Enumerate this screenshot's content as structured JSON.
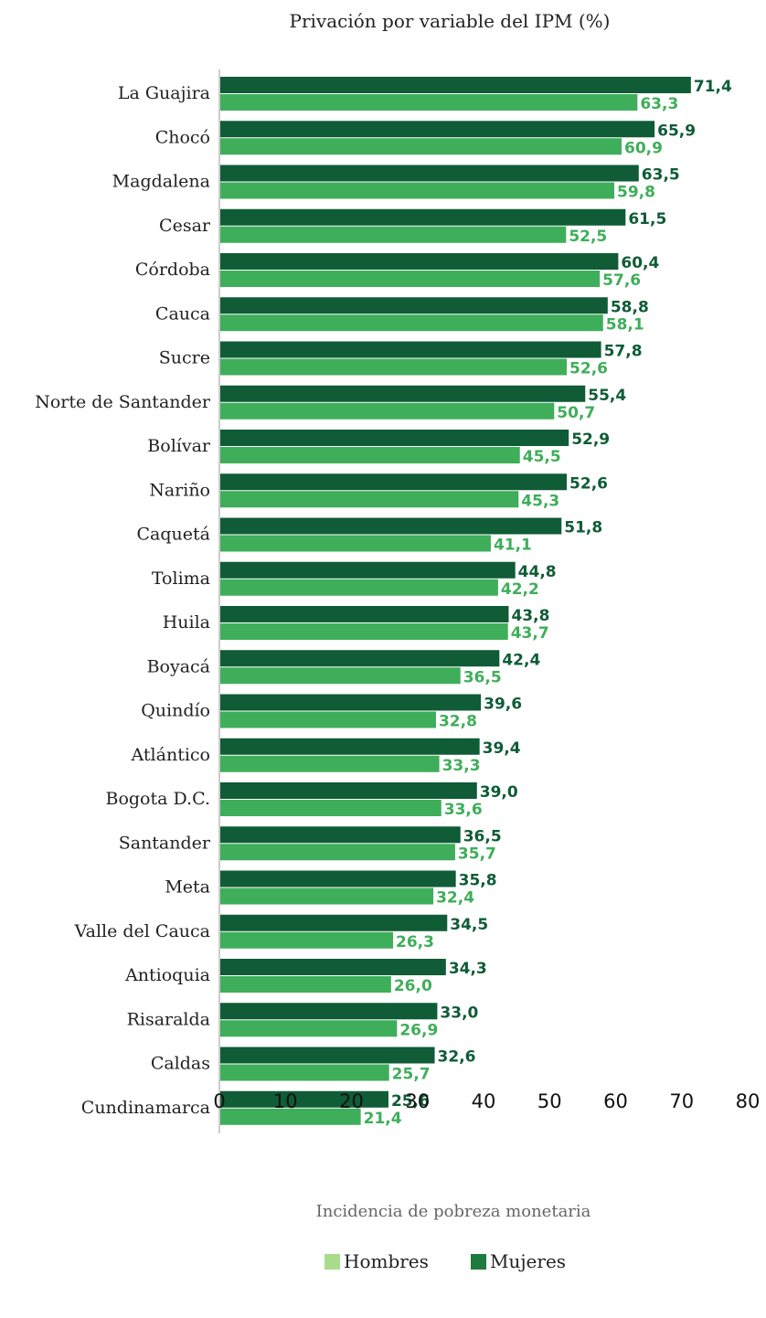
{
  "chart_data": {
    "type": "bar",
    "orientation": "horizontal",
    "title": "Privación por variable del IPM (%)",
    "xlabel": "Incidencia de pobreza monetaria",
    "ylabel": "",
    "xlim": [
      0,
      80
    ],
    "ticks": [
      "0",
      "10",
      "20",
      "30",
      "40",
      "50",
      "60",
      "70",
      "80"
    ],
    "tick_values": [
      0,
      10,
      20,
      30,
      40,
      50,
      60,
      70,
      80
    ],
    "grid": false,
    "legend_position": "bottom",
    "categories": [
      "La Guajira",
      "Chocó",
      "Magdalena",
      "Cesar",
      "Córdoba",
      "Cauca",
      "Sucre",
      "Norte de Santander",
      "Bolívar",
      "Nariño",
      "Caquetá",
      "Tolima",
      "Huila",
      "Boyacá",
      "Quindío",
      "Atlántico",
      "Bogota D.C.",
      "Santander",
      "Meta",
      "Valle del Cauca",
      "Antioquia",
      "Risaralda",
      "Caldas",
      "Cundinamarca"
    ],
    "series": [
      {
        "name": "Mujeres",
        "color": "#0f5c36",
        "label_color": "#0f5c36",
        "values": [
          71.4,
          65.9,
          63.5,
          61.5,
          60.4,
          58.8,
          57.8,
          55.4,
          52.9,
          52.6,
          51.8,
          44.8,
          43.8,
          42.4,
          39.6,
          39.4,
          39.0,
          36.5,
          35.8,
          34.5,
          34.3,
          33.0,
          32.6,
          25.6
        ],
        "labels": [
          "71,4",
          "65,9",
          "63,5",
          "61,5",
          "60,4",
          "58,8",
          "57,8",
          "55,4",
          "52,9",
          "52,6",
          "51,8",
          "44,8",
          "43,8",
          "42,4",
          "39,6",
          "39,4",
          "39,0",
          "36,5",
          "35,8",
          "34,5",
          "34,3",
          "33,0",
          "32,6",
          "25,6"
        ]
      },
      {
        "name": "Hombres",
        "color": "#3fae5a",
        "label_color": "#3fae5a",
        "values": [
          63.3,
          60.9,
          59.8,
          52.5,
          57.6,
          58.1,
          52.6,
          50.7,
          45.5,
          45.3,
          41.1,
          42.2,
          43.7,
          36.5,
          32.8,
          33.3,
          33.6,
          35.7,
          32.4,
          26.3,
          26.0,
          26.9,
          25.7,
          21.4
        ],
        "labels": [
          "63,3",
          "60,9",
          "59,8",
          "52,5",
          "57,6",
          "58,1",
          "52,6",
          "50,7",
          "45,5",
          "45,3",
          "41,1",
          "42,2",
          "43,7",
          "36,5",
          "32,8",
          "33,3",
          "33,6",
          "35,7",
          "32,4",
          "26,3",
          "26,0",
          "26,9",
          "25,7",
          "21,4"
        ]
      }
    ],
    "legend": [
      {
        "name": "Hombres",
        "color": "#a8dc8c"
      },
      {
        "name": "Mujeres",
        "color": "#1f7a3e"
      }
    ]
  }
}
